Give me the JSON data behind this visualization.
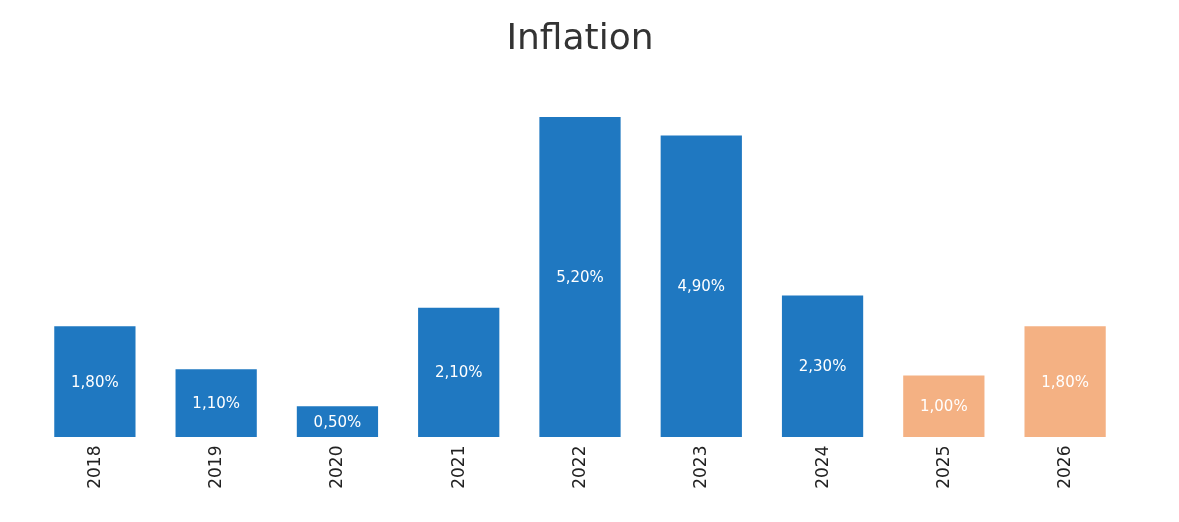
{
  "chart_data": {
    "type": "bar",
    "title": "Inflation",
    "categories": [
      "2018",
      "2019",
      "2020",
      "2021",
      "2022",
      "2023",
      "2024",
      "2025",
      "2026"
    ],
    "values": [
      1.8,
      1.1,
      0.5,
      2.1,
      5.2,
      4.9,
      2.3,
      1.0,
      1.8
    ],
    "colors": [
      "#1f78c1",
      "#1f78c1",
      "#1f78c1",
      "#1f78c1",
      "#1f78c1",
      "#1f78c1",
      "#1f78c1",
      "#f4b183",
      "#f4b183"
    ],
    "value_labels": [
      "1,80%",
      "1,10%",
      "0,50%",
      "2,10%",
      "5,20%",
      "4,90%",
      "2,30%",
      "1,00%",
      "1,80%"
    ]
  }
}
